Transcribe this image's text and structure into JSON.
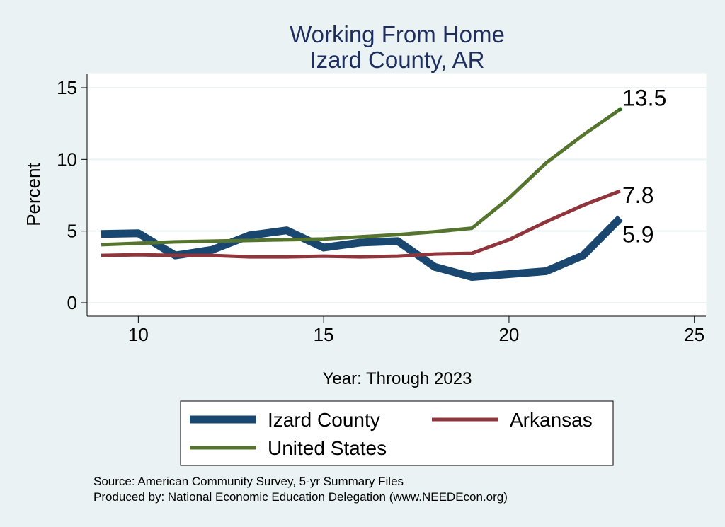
{
  "chart_data": {
    "type": "line",
    "title": [
      "Working From Home",
      "Izard County, AR"
    ],
    "xlabel": "Year: Through 2023",
    "ylabel": "Percent",
    "xlim": [
      8.7,
      25.3
    ],
    "ylim": [
      -0.8,
      15.6
    ],
    "xticks": [
      10,
      15,
      20,
      25
    ],
    "yticks": [
      0,
      5,
      10,
      15
    ],
    "grid": true,
    "legend_placement": "bottom",
    "series": [
      {
        "name": "Izard County",
        "color": "#1a476f",
        "width": 11,
        "x": [
          9,
          10,
          11,
          12,
          13,
          14,
          15,
          16,
          17,
          18,
          19,
          20,
          21,
          22,
          23
        ],
        "values": [
          4.8,
          4.85,
          3.3,
          3.7,
          4.7,
          5.05,
          3.85,
          4.2,
          4.3,
          2.5,
          1.8,
          2.0,
          2.2,
          3.3,
          5.9
        ],
        "end_label": "5.9"
      },
      {
        "name": "Arkansas",
        "color": "#90353b",
        "width": 5,
        "x": [
          9,
          10,
          11,
          12,
          13,
          14,
          15,
          16,
          17,
          18,
          19,
          20,
          21,
          22,
          23
        ],
        "values": [
          3.3,
          3.35,
          3.3,
          3.3,
          3.2,
          3.2,
          3.25,
          3.2,
          3.25,
          3.4,
          3.45,
          4.4,
          5.65,
          6.8,
          7.8
        ],
        "end_label": "7.8"
      },
      {
        "name": "United States",
        "color": "#55752f",
        "width": 5,
        "x": [
          9,
          10,
          11,
          12,
          13,
          14,
          15,
          16,
          17,
          18,
          19,
          20,
          21,
          22,
          23
        ],
        "values": [
          4.05,
          4.15,
          4.25,
          4.3,
          4.35,
          4.4,
          4.45,
          4.6,
          4.75,
          4.95,
          5.2,
          7.3,
          9.75,
          11.7,
          13.5
        ],
        "end_label": "13.5"
      }
    ]
  },
  "notes": {
    "source": "Source: American Community Survey, 5-yr Summary Files",
    "produced": "Produced by: National Economic Education Delegation (www.NEEDEcon.org)"
  }
}
